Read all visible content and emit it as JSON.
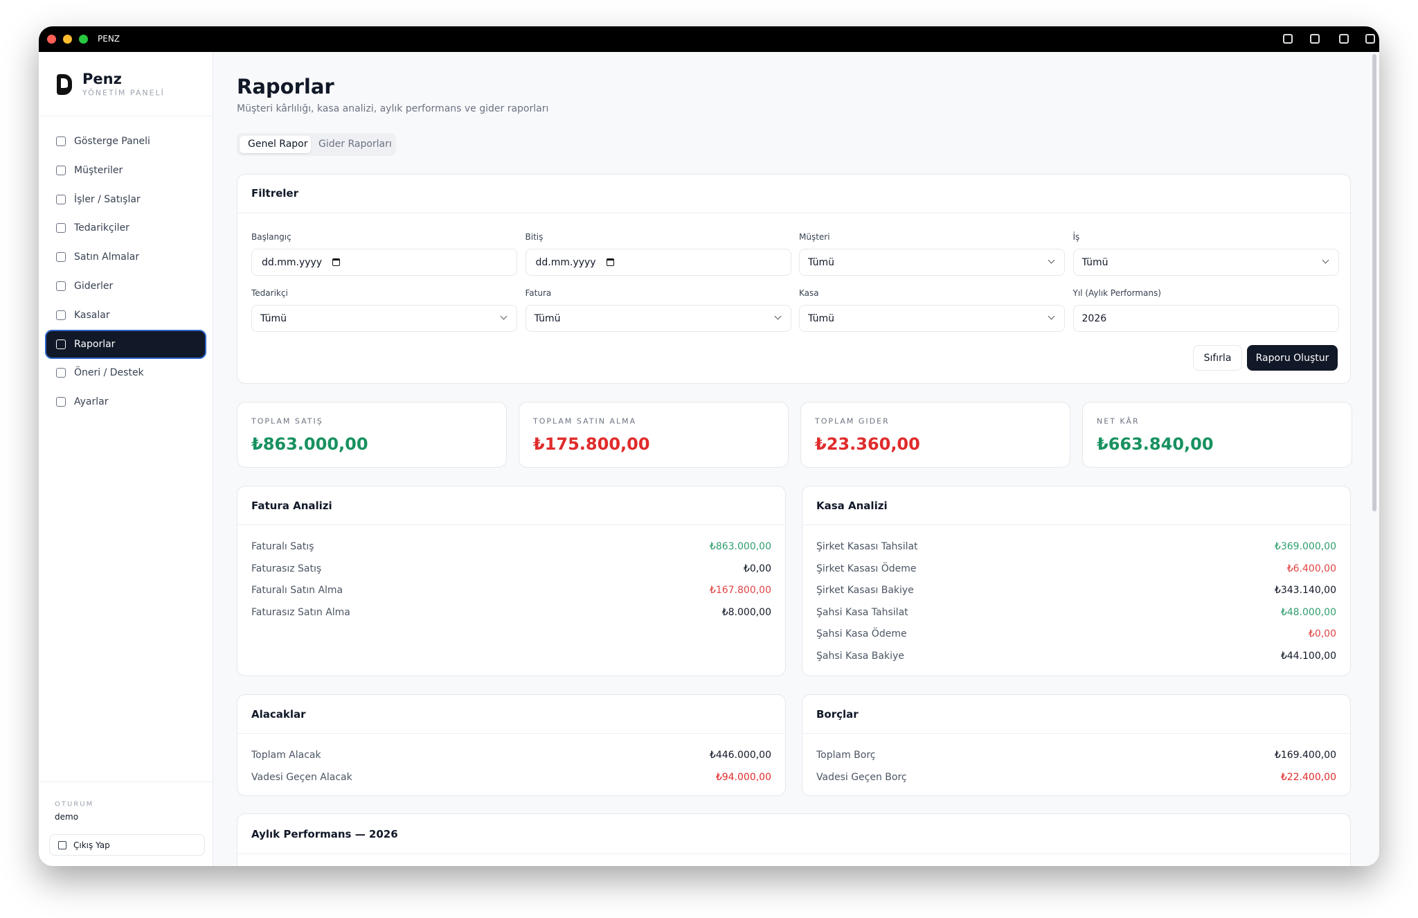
{
  "window": {
    "title": "PENZ"
  },
  "sidebar": {
    "brand": "Penz",
    "subtitle": "YÖNETİM PANELİ",
    "nav": [
      "Gösterge Paneli",
      "Müşteriler",
      "İşler / Satışlar",
      "Tedarikçiler",
      "Satın Almalar",
      "Giderler",
      "Kasalar",
      "Raporlar",
      "Öneri / Destek",
      "Ayarlar"
    ],
    "session_label": "OTURUM",
    "user": "demo",
    "logout": "Çıkış Yap"
  },
  "header": {
    "title": "Raporlar",
    "subtitle": "Müşteri kârlılığı, kasa analizi, aylık performans ve gider raporları"
  },
  "tabs": [
    "Genel Rapor",
    "Gider Raporları"
  ],
  "filters": {
    "title": "Filtreler",
    "fields": [
      {
        "label": "Başlangıç",
        "value": "dd.mm.yyyy",
        "kind": "date"
      },
      {
        "label": "Bitiş",
        "value": "dd.mm.yyyy",
        "kind": "date"
      },
      {
        "label": "Müşteri",
        "value": "Tümü",
        "kind": "select"
      },
      {
        "label": "İş",
        "value": "Tümü",
        "kind": "select"
      },
      {
        "label": "Tedarikçi",
        "value": "Tümü",
        "kind": "select"
      },
      {
        "label": "Fatura",
        "value": "Tümü",
        "kind": "select"
      },
      {
        "label": "Kasa",
        "value": "Tümü",
        "kind": "select"
      },
      {
        "label": "Yıl (Aylık Performans)",
        "value": "2026",
        "kind": "text"
      }
    ],
    "buttons": [
      "Sıfırla",
      "Raporu Oluştur"
    ]
  },
  "kpis": [
    {
      "label": "TOPLAM SATIŞ",
      "value": "₺863.000,00",
      "color": "#17915f"
    },
    {
      "label": "TOPLAM SATIN ALMA",
      "value": "₺175.800,00",
      "color": "#e02b2b"
    },
    {
      "label": "TOPLAM GIDER",
      "value": "₺23.360,00",
      "color": "#e02b2b"
    },
    {
      "label": "NET KÂR",
      "value": "₺663.840,00",
      "color": "#17915f"
    }
  ],
  "panels": [
    {
      "title": "Fatura Analizi",
      "rows": [
        {
          "label": "Faturalı Satış",
          "value": "₺863.000,00",
          "color": "#2f9e6e"
        },
        {
          "label": "Faturasız Satış",
          "value": "₺0,00",
          "color": "#111827"
        },
        {
          "label": "Faturalı Satın Alma",
          "value": "₺167.800,00",
          "color": "#e04444"
        },
        {
          "label": "Faturasız Satın Alma",
          "value": "₺8.000,00",
          "color": "#111827"
        }
      ]
    },
    {
      "title": "Kasa Analizi",
      "rows": [
        {
          "label": "Şirket Kasası Tahsilat",
          "value": "₺369.000,00",
          "color": "#2f9e6e"
        },
        {
          "label": "Şirket Kasası Ödeme",
          "value": "₺6.400,00",
          "color": "#e04444"
        },
        {
          "label": "Şirket Kasası Bakiye",
          "value": "₺343.140,00",
          "color": "#111827"
        },
        {
          "label": "Şahsi Kasa Tahsilat",
          "value": "₺48.000,00",
          "color": "#2f9e6e"
        },
        {
          "label": "Şahsi Kasa Ödeme",
          "value": "₺0,00",
          "color": "#e04444"
        },
        {
          "label": "Şahsi Kasa Bakiye",
          "value": "₺44.100,00",
          "color": "#111827"
        }
      ]
    },
    {
      "title": "Alacaklar",
      "rows": [
        {
          "label": "Toplam Alacak",
          "value": "₺446.000,00",
          "color": "#111827"
        },
        {
          "label": "Vadesi Geçen Alacak",
          "value": "₺94.000,00",
          "color": "#e02b2b"
        }
      ]
    },
    {
      "title": "Borçlar",
      "rows": [
        {
          "label": "Toplam Borç",
          "value": "₺169.400,00",
          "color": "#111827"
        },
        {
          "label": "Vadesi Geçen Borç",
          "value": "₺22.400,00",
          "color": "#e02b2b"
        }
      ]
    }
  ],
  "monthly": {
    "title": "Aylık Performans — 2026"
  }
}
